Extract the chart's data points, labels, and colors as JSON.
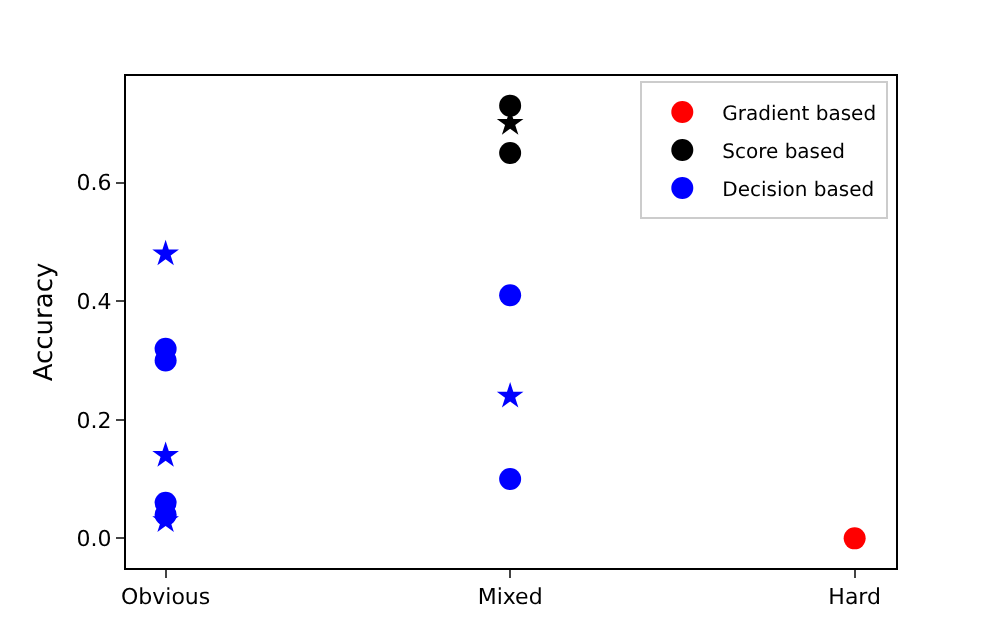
{
  "chart_data": {
    "type": "scatter",
    "ylabel": "Accuracy",
    "categories": [
      "Obvious",
      "Mixed",
      "Hard"
    ],
    "ylim": [
      -0.05,
      0.78
    ],
    "yticks": [
      {
        "value": 0,
        "label": "0.0"
      },
      0.2,
      0.4,
      0.6
    ],
    "grid": false,
    "legend": "top right",
    "series": [
      {
        "name": "Gradient based",
        "color": "#ff0000",
        "marker": "circle",
        "x": [
          "Hard"
        ],
        "values": [
          0.0
        ]
      },
      {
        "name": "Score based",
        "color": "#000000",
        "marker": "circle",
        "x": [
          "Mixed",
          "Mixed"
        ],
        "values": [
          0.73,
          0.65
        ]
      },
      {
        "name": "Decision based",
        "color": "#0000ff",
        "marker": "circle",
        "x": [
          "Obvious",
          "Obvious",
          "Obvious",
          "Obvious",
          "Mixed",
          "Mixed"
        ],
        "values": [
          0.32,
          0.3,
          0.06,
          0.04,
          0.41,
          0.1
        ]
      },
      {
        "color": "#000000",
        "marker": "star",
        "x": [
          "Mixed"
        ],
        "values": [
          0.7
        ]
      },
      {
        "color": "#0000ff",
        "marker": "star",
        "x": [
          "Obvious",
          "Obvious",
          "Obvious",
          "Mixed"
        ],
        "values": [
          0.48,
          0.14,
          0.03,
          0.24
        ]
      }
    ]
  }
}
